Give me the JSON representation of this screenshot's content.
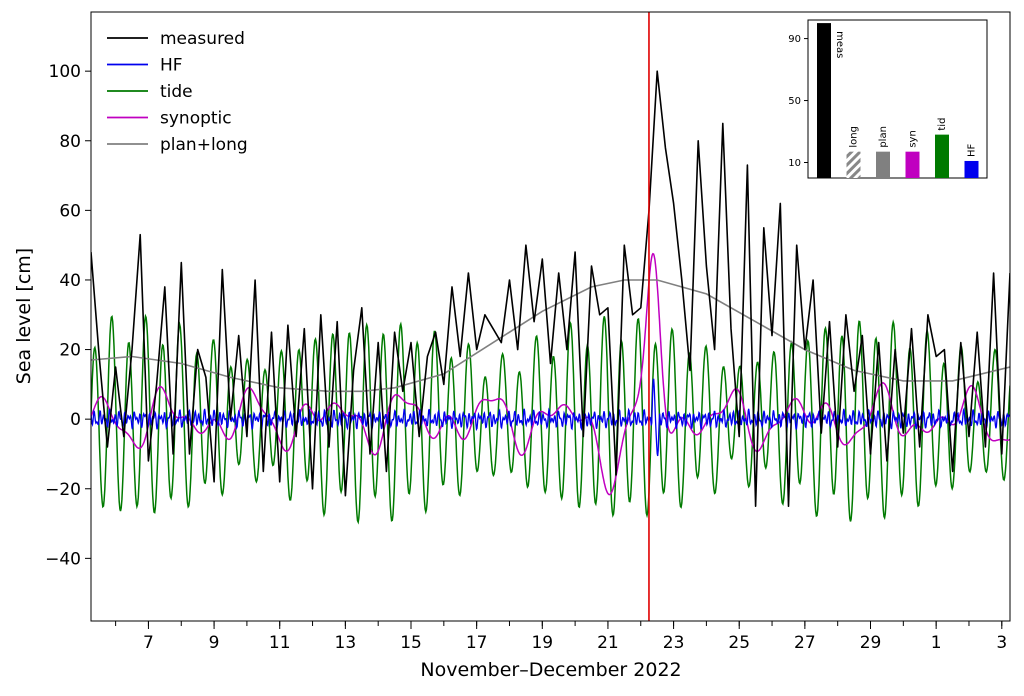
{
  "chart_data": [
    {
      "type": "line",
      "xlabel": "November–December 2022",
      "ylabel": "Sea level [cm]",
      "ylim": [
        -58,
        117
      ],
      "xlim": [
        5.25,
        33.25
      ],
      "yticks": [
        -40,
        -20,
        0,
        20,
        40,
        60,
        80,
        100
      ],
      "x_days": [
        7,
        9,
        11,
        13,
        15,
        17,
        19,
        21,
        23,
        25,
        27,
        29,
        31,
        33
      ],
      "x_tick_labels": [
        "7",
        "9",
        "11",
        "13",
        "15",
        "17",
        "19",
        "21",
        "23",
        "25",
        "27",
        "29",
        "1",
        "3"
      ],
      "marker_line": {
        "x": 22.25,
        "color": "#e00000"
      },
      "legend": {
        "position": "top-left"
      },
      "series": [
        {
          "name": "measured",
          "color": "#000000",
          "x": [
            5.25,
            5.5,
            5.75,
            6,
            6.25,
            6.5,
            6.75,
            7,
            7.25,
            7.5,
            7.75,
            8,
            8.25,
            8.5,
            8.75,
            9,
            9.25,
            9.5,
            9.75,
            10,
            10.25,
            10.5,
            10.75,
            11,
            11.25,
            11.5,
            11.75,
            12,
            12.25,
            12.5,
            12.75,
            13,
            13.25,
            13.5,
            13.75,
            14,
            14.25,
            14.5,
            14.75,
            15,
            15.25,
            15.5,
            15.75,
            16,
            16.25,
            16.5,
            16.75,
            17,
            17.25,
            17.5,
            17.75,
            18,
            18.25,
            18.5,
            18.75,
            19,
            19.25,
            19.5,
            19.75,
            20,
            20.25,
            20.5,
            20.75,
            21,
            21.25,
            21.5,
            21.75,
            22,
            22.25,
            22.5,
            22.75,
            23,
            23.25,
            23.5,
            23.75,
            24,
            24.25,
            24.5,
            24.75,
            25,
            25.25,
            25.5,
            25.75,
            26,
            26.25,
            26.5,
            26.75,
            27,
            27.25,
            27.5,
            27.75,
            28,
            28.25,
            28.5,
            28.75,
            29,
            29.25,
            29.5,
            29.75,
            30,
            30.25,
            30.5,
            30.75,
            31,
            31.25,
            31.5,
            31.75,
            32,
            32.25,
            32.5,
            32.75,
            33,
            33.25
          ],
          "values": [
            48,
            18,
            -8,
            15,
            -5,
            20,
            53,
            -12,
            10,
            38,
            -10,
            45,
            -10,
            20,
            12,
            -18,
            43,
            0,
            24,
            -5,
            40,
            -15,
            25,
            -18,
            27,
            -5,
            26,
            -20,
            30,
            -8,
            28,
            -22,
            14,
            32,
            -10,
            22,
            -15,
            25,
            8,
            22,
            -5,
            18,
            25,
            10,
            38,
            18,
            42,
            20,
            30,
            26,
            22,
            40,
            20,
            50,
            28,
            46,
            16,
            42,
            20,
            48,
            -5,
            44,
            30,
            32,
            -16,
            50,
            30,
            32,
            60,
            100,
            78,
            62,
            40,
            14,
            80,
            44,
            20,
            85,
            26,
            -5,
            73,
            -25,
            55,
            24,
            62,
            -25,
            50,
            20,
            40,
            -4,
            28,
            -8,
            30,
            8,
            24,
            -10,
            22,
            -12,
            20,
            -4,
            26,
            -8,
            30,
            18,
            20,
            -15,
            22,
            -5,
            25,
            -8,
            42,
            -10,
            42
          ],
          "points": [
            [
              5.25,
              48
            ],
            [
              5.5,
              18
            ],
            [
              5.75,
              -8
            ],
            [
              6,
              15
            ],
            [
              6.25,
              -5
            ],
            [
              6.5,
              20
            ],
            [
              6.75,
              53
            ],
            [
              7,
              -12
            ],
            [
              7.25,
              10
            ],
            [
              7.5,
              38
            ],
            [
              7.75,
              -10
            ],
            [
              8,
              45
            ],
            [
              8.25,
              -10
            ],
            [
              8.5,
              20
            ],
            [
              8.75,
              12
            ],
            [
              9,
              -18
            ],
            [
              9.25,
              43
            ],
            [
              9.5,
              0
            ],
            [
              9.75,
              24
            ],
            [
              10,
              -5
            ],
            [
              10.25,
              40
            ],
            [
              10.5,
              -15
            ],
            [
              10.75,
              25
            ],
            [
              11,
              -18
            ],
            [
              11.25,
              27
            ],
            [
              11.5,
              -5
            ],
            [
              11.75,
              26
            ],
            [
              12,
              -20
            ],
            [
              12.25,
              30
            ],
            [
              12.5,
              -8
            ],
            [
              12.75,
              28
            ],
            [
              13,
              -22
            ],
            [
              13.25,
              14
            ],
            [
              13.5,
              32
            ],
            [
              13.75,
              -10
            ],
            [
              14,
              22
            ],
            [
              14.25,
              -15
            ],
            [
              14.5,
              25
            ],
            [
              14.75,
              8
            ],
            [
              15,
              22
            ],
            [
              15.25,
              -5
            ],
            [
              15.5,
              18
            ],
            [
              15.75,
              25
            ],
            [
              16,
              10
            ],
            [
              16.25,
              38
            ],
            [
              16.5,
              18
            ],
            [
              16.75,
              42
            ],
            [
              17,
              20
            ],
            [
              17.25,
              30
            ],
            [
              17.5,
              26
            ],
            [
              17.75,
              22
            ],
            [
              18,
              40
            ],
            [
              18.25,
              20
            ],
            [
              18.5,
              50
            ],
            [
              18.75,
              28
            ],
            [
              19,
              46
            ],
            [
              19.25,
              16
            ],
            [
              19.5,
              42
            ],
            [
              19.75,
              20
            ],
            [
              20,
              48
            ],
            [
              20.25,
              -5
            ],
            [
              20.5,
              44
            ],
            [
              20.75,
              30
            ],
            [
              21,
              32
            ],
            [
              21.25,
              -16
            ],
            [
              21.5,
              50
            ],
            [
              21.75,
              30
            ],
            [
              22,
              32
            ],
            [
              22.25,
              60
            ],
            [
              22.5,
              100
            ],
            [
              22.75,
              78
            ],
            [
              23,
              62
            ],
            [
              23.25,
              40
            ],
            [
              23.5,
              14
            ],
            [
              23.75,
              80
            ],
            [
              24,
              44
            ],
            [
              24.25,
              20
            ],
            [
              24.5,
              85
            ],
            [
              24.75,
              26
            ],
            [
              25,
              -5
            ],
            [
              25.25,
              73
            ],
            [
              25.5,
              -25
            ],
            [
              25.75,
              55
            ],
            [
              26,
              24
            ],
            [
              26.25,
              62
            ],
            [
              26.5,
              -25
            ],
            [
              26.75,
              50
            ],
            [
              27,
              20
            ],
            [
              27.25,
              40
            ],
            [
              27.5,
              -4
            ],
            [
              27.75,
              28
            ],
            [
              28,
              -8
            ],
            [
              28.25,
              30
            ],
            [
              28.5,
              8
            ],
            [
              28.75,
              24
            ],
            [
              29,
              -10
            ],
            [
              29.25,
              22
            ],
            [
              29.5,
              -12
            ],
            [
              29.75,
              20
            ],
            [
              30,
              -4
            ],
            [
              30.25,
              26
            ],
            [
              30.5,
              -8
            ],
            [
              30.75,
              30
            ],
            [
              31,
              18
            ],
            [
              31.25,
              20
            ],
            [
              31.5,
              -15
            ],
            [
              31.75,
              22
            ],
            [
              32,
              -5
            ],
            [
              32.25,
              25
            ],
            [
              32.5,
              -8
            ],
            [
              32.75,
              42
            ],
            [
              33,
              -10
            ],
            [
              33.25,
              42
            ]
          ]
        },
        {
          "name": "HF",
          "color": "#0000ee"
        },
        {
          "name": "tide",
          "color": "#007a00"
        },
        {
          "name": "synoptic",
          "color": "#c000c0"
        },
        {
          "name": "plan+long",
          "color": "#808080",
          "x": [
            5.25,
            6.5,
            8,
            9.5,
            11,
            12.5,
            13.5,
            14.5,
            16,
            17.5,
            19,
            20.5,
            21.5,
            22.5,
            24,
            25.5,
            27,
            28.5,
            30,
            31.5,
            33.25
          ],
          "values": [
            17,
            18,
            16,
            12,
            9,
            8,
            8,
            9,
            13,
            22,
            31,
            38,
            40,
            40,
            36,
            28,
            20,
            14,
            11,
            11,
            15
          ]
        }
      ]
    },
    {
      "type": "bar",
      "position": "top-right",
      "categories": [
        "meas",
        "long",
        "plan",
        "syn",
        "tid",
        "HF"
      ],
      "values": [
        100,
        17,
        17,
        17,
        28,
        11
      ],
      "colors": [
        "#000000",
        "#888888",
        "#808080",
        "#c000c0",
        "#007a00",
        "#0000ee"
      ],
      "hatched": [
        false,
        true,
        false,
        false,
        false,
        false
      ],
      "yticks": [
        10,
        50,
        90
      ],
      "ylim": [
        0,
        102
      ]
    }
  ]
}
